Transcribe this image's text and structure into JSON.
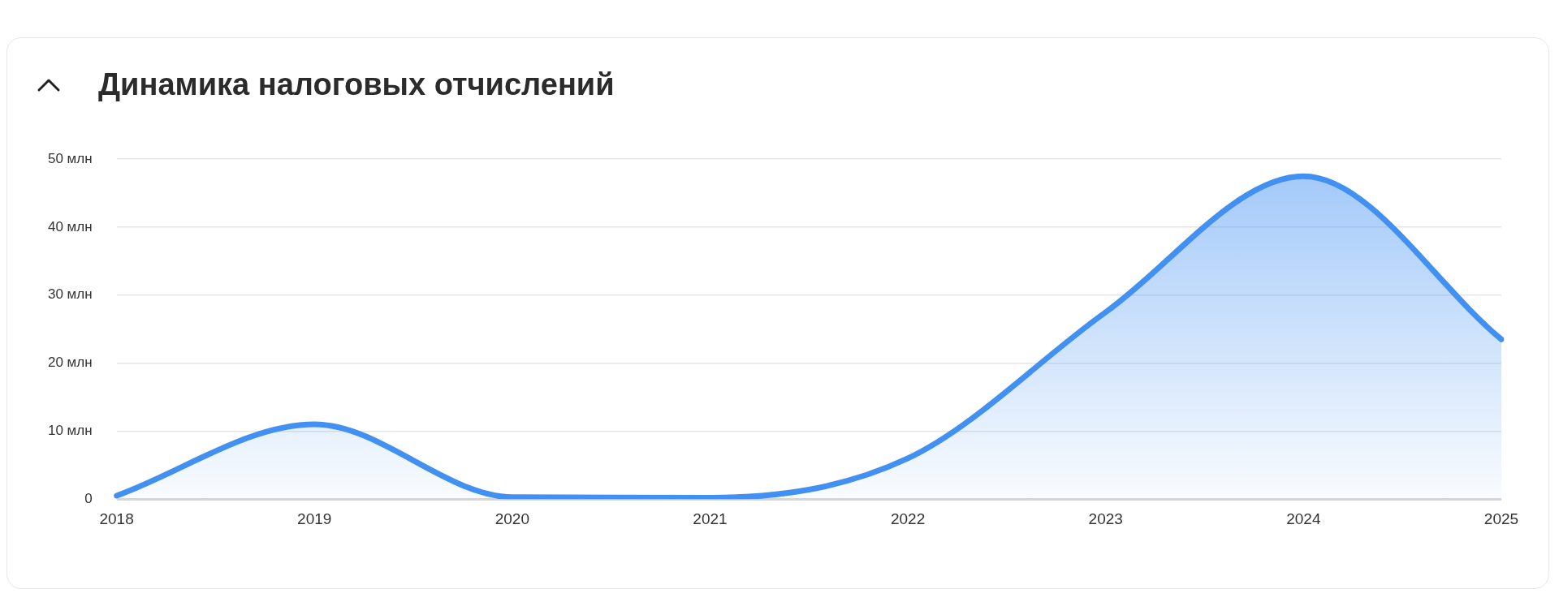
{
  "chart_data": {
    "type": "area",
    "title": "Динамика налоговых отчислений",
    "categories": [
      "2018",
      "2019",
      "2020",
      "2021",
      "2022",
      "2023",
      "2024",
      "2025"
    ],
    "series": [
      {
        "color": "#4190f2",
        "values": [
          0.5,
          11,
          0.3,
          0.2,
          6,
          27.5,
          47.5,
          23.5
        ]
      }
    ],
    "ylim": [
      0,
      50
    ],
    "yticks": [
      0,
      {
        "value": 10,
        "label": "10 млн"
      },
      {
        "value": 20,
        "label": "20 млн"
      },
      {
        "value": 30,
        "label": "30 млн"
      },
      {
        "value": 40,
        "label": "40 млн"
      },
      {
        "value": 50,
        "label": "50 млн"
      }
    ],
    "grid": "y",
    "legend": false,
    "marker": "none",
    "line_style": "solid"
  }
}
